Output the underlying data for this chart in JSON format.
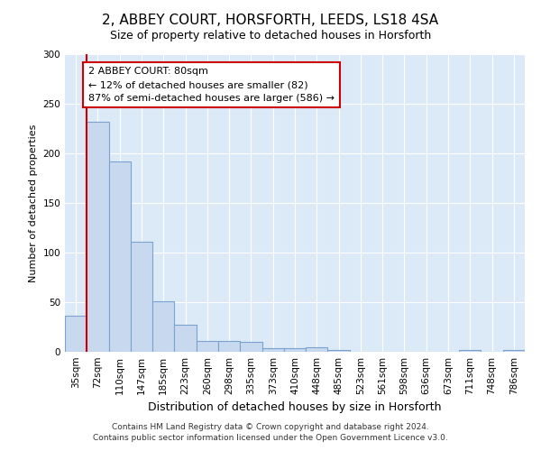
{
  "title1": "2, ABBEY COURT, HORSFORTH, LEEDS, LS18 4SA",
  "title2": "Size of property relative to detached houses in Horsforth",
  "xlabel": "Distribution of detached houses by size in Horsforth",
  "ylabel": "Number of detached properties",
  "bar_labels": [
    "35sqm",
    "72sqm",
    "110sqm",
    "147sqm",
    "185sqm",
    "223sqm",
    "260sqm",
    "298sqm",
    "335sqm",
    "373sqm",
    "410sqm",
    "448sqm",
    "485sqm",
    "523sqm",
    "561sqm",
    "598sqm",
    "636sqm",
    "673sqm",
    "711sqm",
    "748sqm",
    "786sqm"
  ],
  "bar_values": [
    36,
    232,
    192,
    111,
    51,
    27,
    11,
    11,
    10,
    4,
    4,
    5,
    2,
    0,
    0,
    0,
    0,
    0,
    2,
    0,
    2
  ],
  "bar_color": "#c8d8ee",
  "bar_edge_color": "#7ba3d0",
  "annotation_text": "2 ABBEY COURT: 80sqm\n← 12% of detached houses are smaller (82)\n87% of semi-detached houses are larger (586) →",
  "annotation_box_color": "white",
  "annotation_box_edge_color": "#cc0000",
  "vline_color": "#cc0000",
  "ylim": [
    0,
    300
  ],
  "yticks": [
    0,
    50,
    100,
    150,
    200,
    250,
    300
  ],
  "footer1": "Contains HM Land Registry data © Crown copyright and database right 2024.",
  "footer2": "Contains public sector information licensed under the Open Government Licence v3.0.",
  "background_color": "#ffffff",
  "plot_background_color": "#dce9f7",
  "grid_color": "#ffffff",
  "title1_fontsize": 11,
  "title2_fontsize": 9,
  "ylabel_fontsize": 8,
  "xlabel_fontsize": 9,
  "tick_fontsize": 7.5,
  "footer_fontsize": 6.5,
  "annot_fontsize": 8
}
